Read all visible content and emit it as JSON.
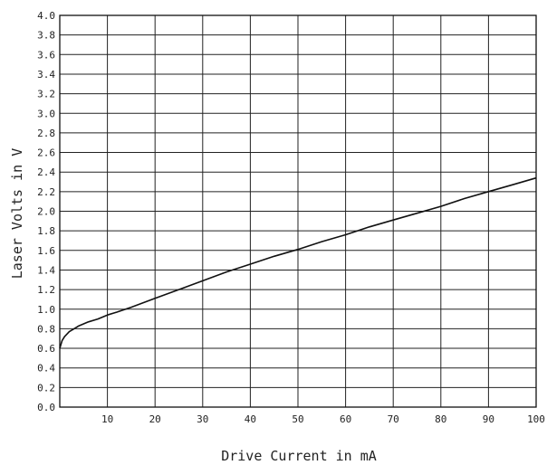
{
  "chart_data": {
    "type": "line",
    "title": "",
    "xlabel": "Drive Current in mA",
    "ylabel": "Laser Volts in V",
    "xlim": [
      0,
      100
    ],
    "ylim": [
      0.0,
      4.0
    ],
    "x_ticks": [
      10,
      20,
      30,
      40,
      50,
      60,
      70,
      80,
      90,
      100
    ],
    "y_ticks": [
      "0.0",
      "0.2",
      "0.4",
      "0.6",
      "0.8",
      "1.0",
      "1.2",
      "1.4",
      "1.6",
      "1.8",
      "2.0",
      "2.2",
      "2.4",
      "2.6",
      "2.8",
      "3.0",
      "3.2",
      "3.4",
      "3.6",
      "3.8",
      "4.0"
    ],
    "grid": true,
    "legend": "none",
    "line_color": "#111111",
    "grid_color": "#222222",
    "series": [
      {
        "x": [
          0,
          0.5,
          1,
          2,
          3,
          4,
          5,
          6,
          8,
          10,
          12,
          15,
          20,
          25,
          30,
          35,
          40,
          45,
          50,
          55,
          60,
          65,
          70,
          75,
          80,
          85,
          90,
          95,
          100
        ],
        "values": [
          0.6,
          0.68,
          0.72,
          0.77,
          0.8,
          0.83,
          0.85,
          0.87,
          0.9,
          0.94,
          0.97,
          1.02,
          1.11,
          1.2,
          1.29,
          1.38,
          1.46,
          1.54,
          1.61,
          1.69,
          1.76,
          1.84,
          1.91,
          1.98,
          2.05,
          2.13,
          2.2,
          2.27,
          2.34
        ]
      }
    ]
  }
}
